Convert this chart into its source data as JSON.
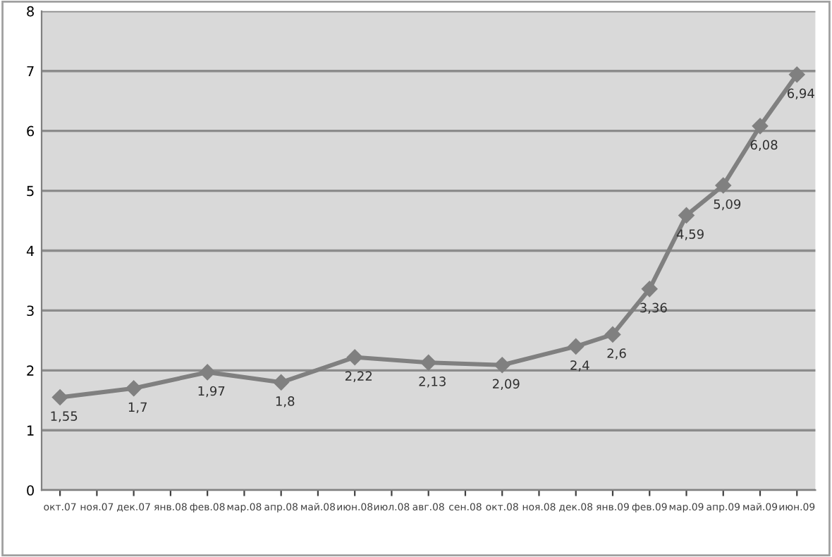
{
  "chart_data": {
    "type": "line",
    "categories": [
      "окт.07",
      "ноя.07",
      "дек.07",
      "янв.08",
      "фев.08",
      "мар.08",
      "апр.08",
      "май.08",
      "июн.08",
      "июл.08",
      "авг.08",
      "сен.08",
      "окт.08",
      "ноя.08",
      "дек.08",
      "янв.09",
      "фев.09",
      "мар.09",
      "апр.09",
      "май.09",
      "июн.09"
    ],
    "series": [
      {
        "color": "#808080",
        "values": [
          1.55,
          null,
          1.7,
          null,
          1.97,
          null,
          1.8,
          null,
          2.22,
          null,
          2.13,
          null,
          2.09,
          null,
          2.4,
          2.6,
          3.36,
          4.59,
          5.09,
          6.08,
          6.94
        ],
        "value_labels": [
          "1,55",
          null,
          "1,7",
          null,
          "1,97",
          null,
          "1,8",
          null,
          "2,22",
          null,
          "2,13",
          null,
          "2,09",
          null,
          "2,4",
          "2,6",
          "3,36",
          "4,59",
          "5,09",
          "6,08",
          "6,94"
        ]
      }
    ],
    "ylim": [
      0,
      8
    ],
    "yticks": [
      0,
      1,
      2,
      3,
      4,
      5,
      6,
      7,
      8
    ],
    "grid": "y",
    "marker": "diamond",
    "line_style": "solid",
    "legend": false
  }
}
